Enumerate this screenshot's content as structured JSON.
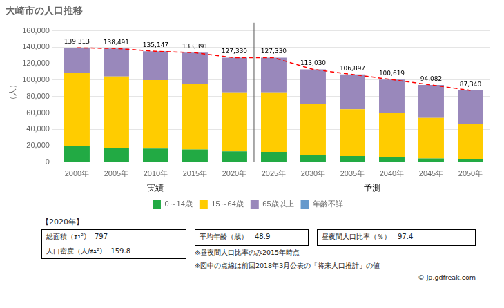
{
  "chart_data": {
    "type": "bar",
    "title": "大崎市の人口推移",
    "ylabel": "（人）",
    "categories": [
      "2000年",
      "2005年",
      "2010年",
      "2015年",
      "2020年",
      "2025年",
      "2030年",
      "2035年",
      "2040年",
      "2045年",
      "2050年"
    ],
    "stacked": true,
    "grid": true,
    "legend": "bottom",
    "ylim": [
      0,
      170000
    ],
    "yticks": [
      0,
      {
        "value": 20000,
        "label": "20,000"
      },
      {
        "value": 40000,
        "label": "40,000"
      },
      {
        "value": 60000,
        "label": "60,000"
      },
      {
        "value": 80000,
        "label": "80,000"
      },
      {
        "value": 100000,
        "label": "100,000"
      },
      {
        "value": 120000,
        "label": "120,000"
      },
      {
        "value": 140000,
        "label": "140,000"
      },
      {
        "value": 160000,
        "label": "160,000"
      }
    ],
    "series": [
      {
        "name": "0～14歳",
        "color": "#22aa44",
        "values": [
          20000,
          17500,
          16500,
          15500,
          13000,
          12500,
          9000,
          7500,
          6000,
          4500,
          4000
        ]
      },
      {
        "name": "15～64歳",
        "color": "#ffcc00",
        "values": [
          89000,
          87000,
          83500,
          80000,
          72000,
          72500,
          62000,
          57000,
          54000,
          49500,
          43000
        ]
      },
      {
        "name": "65歳以上",
        "color": "#9988bb",
        "values": [
          30313,
          33991,
          35147,
          37891,
          42330,
          42330,
          42030,
          42397,
          40619,
          40082,
          40340
        ]
      },
      {
        "name": "年齢不詳",
        "color": "#6699cc",
        "values": [
          null,
          null,
          null,
          null,
          null,
          null,
          null,
          null,
          null,
          null,
          null
        ]
      },
      {
        "type": "line",
        "line_style": "dashed",
        "color": "#ff0000",
        "data_labels": true,
        "values": [
          139313,
          138491,
          135147,
          133391,
          127330,
          127330,
          113030,
          106897,
          100619,
          94082,
          87340
        ],
        "value_labels": [
          "139,313",
          "138,491",
          "135,147",
          "133,391",
          "127,330",
          "127,330",
          "113,030",
          "106,897",
          "100,619",
          "94,082",
          "87,340"
        ]
      }
    ],
    "annotations": [
      "実績",
      "予測",
      "【2020年】",
      "総面積（ｫｭ²）　797",
      "人口密度（人/ｫｭ²）　159.8",
      "平均年齢（歳）　48.9",
      "昼夜間人口比率（％）　97.4",
      "※昼夜間人口比率のみ2015年時点",
      "※図中の点線は前回2018年3月公表の「将来人口推計」の値",
      "© jp.gdfreak.com"
    ]
  }
}
